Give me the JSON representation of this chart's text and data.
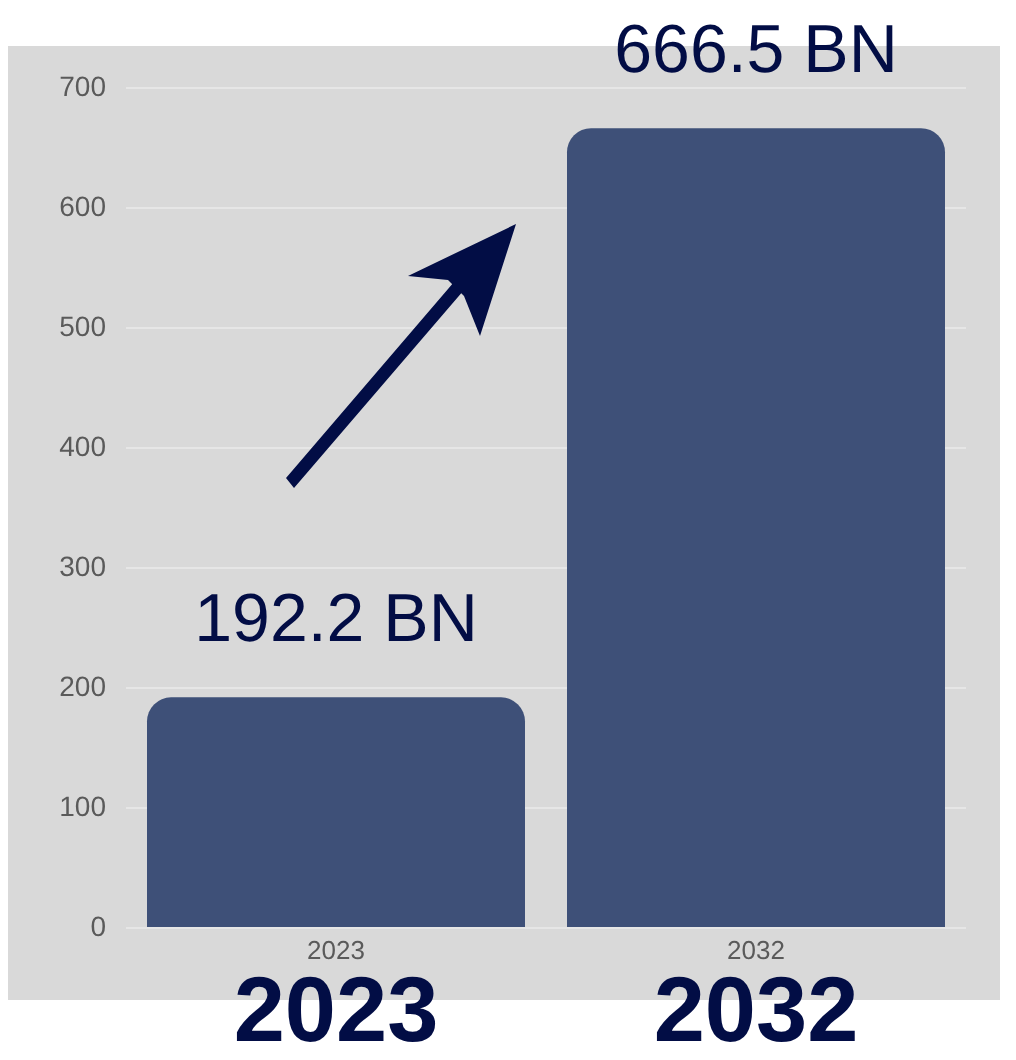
{
  "chart_data": {
    "type": "bar",
    "categories": [
      "2023",
      "2032"
    ],
    "values": [
      192.2,
      666.5
    ],
    "value_labels": [
      "192.2 BN",
      "666.5 BN"
    ],
    "color": "#3e5078",
    "ylim": [
      0,
      700
    ],
    "yticks": [
      0,
      100,
      200,
      300,
      400,
      500,
      600,
      700
    ],
    "grid": "y",
    "legend": false
  }
}
